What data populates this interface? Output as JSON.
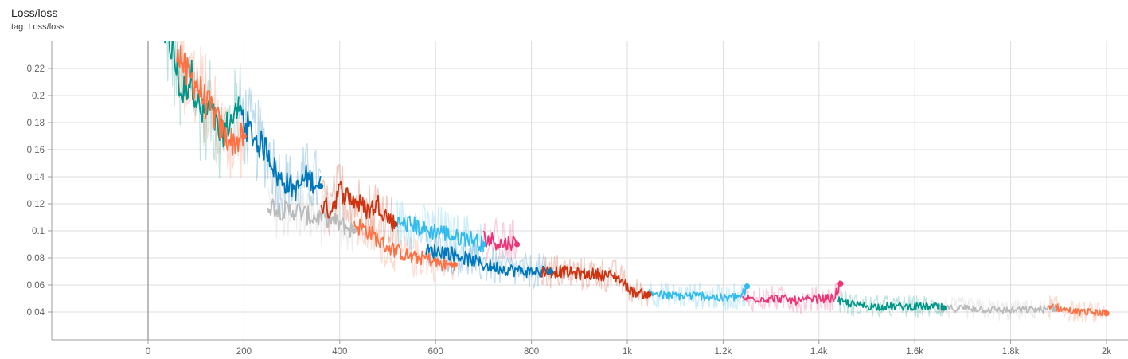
{
  "card": {
    "title": "Loss/loss",
    "subtitle": "tag: Loss/loss"
  },
  "chart_data": {
    "type": "line",
    "title": "Loss/loss",
    "subtitle": "tag: Loss/loss",
    "xlabel": "",
    "ylabel": "",
    "xlim": [
      -200,
      2050
    ],
    "ylim": [
      0.02,
      0.24
    ],
    "x_ticks": [
      {
        "value": 0,
        "label": "0"
      },
      {
        "value": 200,
        "label": "200"
      },
      {
        "value": 400,
        "label": "400"
      },
      {
        "value": 600,
        "label": "600"
      },
      {
        "value": 800,
        "label": "800"
      },
      {
        "value": 1000,
        "label": "1k"
      },
      {
        "value": 1200,
        "label": "1.2k"
      },
      {
        "value": 1400,
        "label": "1.4k"
      },
      {
        "value": 1600,
        "label": "1.6k"
      },
      {
        "value": 1800,
        "label": "1.8k"
      },
      {
        "value": 2000,
        "label": "2k"
      }
    ],
    "y_ticks": [
      {
        "value": 0.04,
        "label": "0.04"
      },
      {
        "value": 0.06,
        "label": "0.06"
      },
      {
        "value": 0.08,
        "label": "0.08"
      },
      {
        "value": 0.1,
        "label": "0.1"
      },
      {
        "value": 0.12,
        "label": "0.12"
      },
      {
        "value": 0.14,
        "label": "0.14"
      },
      {
        "value": 0.16,
        "label": "0.16"
      },
      {
        "value": 0.18,
        "label": "0.18"
      },
      {
        "value": 0.2,
        "label": "0.2"
      },
      {
        "value": 0.22,
        "label": "0.22"
      }
    ],
    "grid": true,
    "legend": "none",
    "series": [
      {
        "color": "#009688",
        "x": [
          35,
          50,
          70,
          90,
          110,
          130,
          150,
          170,
          190
        ],
        "y": [
          0.245,
          0.235,
          0.2,
          0.215,
          0.185,
          0.19,
          0.17,
          0.18,
          0.19
        ]
      },
      {
        "color": "#ff7043",
        "x": [
          60,
          80,
          100,
          120,
          140,
          160,
          180,
          200
        ],
        "y": [
          0.24,
          0.215,
          0.21,
          0.195,
          0.185,
          0.17,
          0.165,
          0.17
        ]
      },
      {
        "color": "#0077bb",
        "x": [
          190,
          210,
          230,
          250,
          270,
          290,
          310,
          330,
          360
        ],
        "y": [
          0.19,
          0.175,
          0.165,
          0.16,
          0.14,
          0.135,
          0.13,
          0.14,
          0.133
        ]
      },
      {
        "color": "#bbbbbb",
        "x": [
          250,
          280,
          310,
          340,
          370,
          400,
          430
        ],
        "y": [
          0.12,
          0.115,
          0.115,
          0.11,
          0.11,
          0.105,
          0.1
        ]
      },
      {
        "color": "#cc3311",
        "x": [
          360,
          380,
          400,
          420,
          440,
          460,
          480,
          500,
          515
        ],
        "y": [
          0.12,
          0.115,
          0.13,
          0.125,
          0.12,
          0.115,
          0.12,
          0.11,
          0.105
        ]
      },
      {
        "color": "#ff7043",
        "x": [
          430,
          460,
          490,
          520,
          550,
          580,
          610,
          640
        ],
        "y": [
          0.105,
          0.1,
          0.09,
          0.085,
          0.08,
          0.08,
          0.075,
          0.075
        ]
      },
      {
        "color": "#33bbee",
        "x": [
          520,
          550,
          580,
          610,
          640,
          670,
          700
        ],
        "y": [
          0.105,
          0.105,
          0.1,
          0.1,
          0.095,
          0.095,
          0.09
        ]
      },
      {
        "color": "#0077bb",
        "x": [
          580,
          620,
          660,
          700,
          740,
          780,
          820,
          840
        ],
        "y": [
          0.085,
          0.085,
          0.08,
          0.075,
          0.072,
          0.07,
          0.07,
          0.07
        ]
      },
      {
        "color": "#ee3377",
        "x": [
          700,
          720,
          740,
          760,
          770
        ],
        "y": [
          0.095,
          0.093,
          0.09,
          0.092,
          0.09
        ]
      },
      {
        "color": "#cc3311",
        "x": [
          820,
          860,
          900,
          940,
          980,
          1010,
          1040,
          1045
        ],
        "y": [
          0.07,
          0.07,
          0.068,
          0.068,
          0.066,
          0.055,
          0.053,
          0.053
        ]
      },
      {
        "color": "#33bbee",
        "x": [
          1045,
          1080,
          1120,
          1160,
          1200,
          1240,
          1250
        ],
        "y": [
          0.055,
          0.052,
          0.052,
          0.052,
          0.05,
          0.052,
          0.059
        ]
      },
      {
        "color": "#ee3377",
        "x": [
          1240,
          1280,
          1320,
          1360,
          1400,
          1430,
          1445
        ],
        "y": [
          0.05,
          0.05,
          0.05,
          0.048,
          0.05,
          0.05,
          0.061
        ]
      },
      {
        "color": "#009688",
        "x": [
          1440,
          1480,
          1520,
          1560,
          1600,
          1640,
          1660
        ],
        "y": [
          0.048,
          0.045,
          0.044,
          0.044,
          0.044,
          0.044,
          0.043
        ]
      },
      {
        "color": "#bbbbbb",
        "x": [
          1650,
          1700,
          1750,
          1800,
          1850,
          1890
        ],
        "y": [
          0.042,
          0.043,
          0.042,
          0.041,
          0.042,
          0.042
        ]
      },
      {
        "color": "#ff7043",
        "x": [
          1880,
          1910,
          1940,
          1970,
          2000
        ],
        "y": [
          0.045,
          0.042,
          0.04,
          0.04,
          0.039
        ]
      }
    ]
  }
}
